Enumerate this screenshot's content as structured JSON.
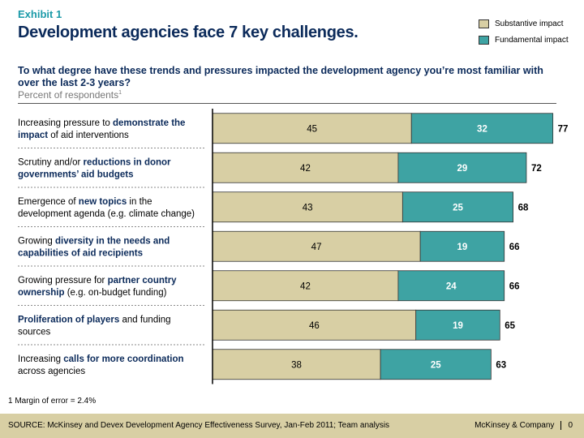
{
  "exhibit_label": "Exhibit 1",
  "title": "Development agencies face 7 key challenges.",
  "question": "To what degree have these trends and pressures impacted the development agency you’re most familiar with over the last 2-3 years?",
  "subtitle": "Percent of respondents",
  "subtitle_footnote_marker": "1",
  "footnote": "1 Margin of error = 2.4%",
  "source": "SOURCE: McKinsey and Devex Development Agency Effectiveness Survey, Jan-Feb 2011; Team analysis",
  "brand": "McKinsey & Company",
  "page_number": "0",
  "colors": {
    "substantive": "#d8cfa4",
    "fundamental": "#3ea3a3",
    "title": "#0b2a5a",
    "exhibit": "#1b9aa8"
  },
  "chart_data": {
    "type": "bar",
    "orientation": "horizontal",
    "stacked": true,
    "title": "",
    "xlabel": "",
    "ylabel": "",
    "xlim": [
      0,
      77
    ],
    "legend_position": "top-right",
    "grid": false,
    "categories": [
      {
        "lines": [
          [
            {
              "t": "Increasing pressure to ",
              "b": false
            },
            {
              "t": "demonstrate the",
              "b": true
            }
          ],
          [
            {
              "t": "impact",
              "b": true
            },
            {
              "t": " of aid interventions",
              "b": false
            }
          ]
        ]
      },
      {
        "lines": [
          [
            {
              "t": "Scrutiny and/or ",
              "b": false
            },
            {
              "t": "reductions in donor",
              "b": true
            }
          ],
          [
            {
              "t": "governments’ aid budgets",
              "b": true
            }
          ]
        ]
      },
      {
        "lines": [
          [
            {
              "t": "Emergence of ",
              "b": false
            },
            {
              "t": "new topics",
              "b": true
            },
            {
              "t": " in the",
              "b": false
            }
          ],
          [
            {
              "t": "development agenda (e.g. climate change)",
              "b": false
            }
          ]
        ]
      },
      {
        "lines": [
          [
            {
              "t": "Growing ",
              "b": false
            },
            {
              "t": "diversity in the needs and",
              "b": true
            }
          ],
          [
            {
              "t": "capabilities of aid recipients",
              "b": true
            }
          ]
        ]
      },
      {
        "lines": [
          [
            {
              "t": "Growing pressure for ",
              "b": false
            },
            {
              "t": "partner country",
              "b": true
            }
          ],
          [
            {
              "t": "ownership",
              "b": true
            },
            {
              "t": " (e.g. on-budget funding)",
              "b": false
            }
          ]
        ]
      },
      {
        "lines": [
          [
            {
              "t": "Proliferation of players",
              "b": true
            },
            {
              "t": " and funding",
              "b": false
            }
          ],
          [
            {
              "t": "sources",
              "b": false
            }
          ]
        ]
      },
      {
        "lines": [
          [
            {
              "t": "Increasing ",
              "b": false
            },
            {
              "t": "calls for more coordination",
              "b": true
            }
          ],
          [
            {
              "t": "across agencies",
              "b": false
            }
          ]
        ]
      }
    ],
    "series": [
      {
        "name": "Substantive impact",
        "values": [
          45,
          42,
          43,
          47,
          42,
          46,
          38
        ]
      },
      {
        "name": "Fundamental impact",
        "values": [
          32,
          29,
          25,
          19,
          24,
          19,
          25
        ]
      }
    ],
    "totals": [
      77,
      72,
      68,
      66,
      66,
      65,
      63
    ]
  }
}
